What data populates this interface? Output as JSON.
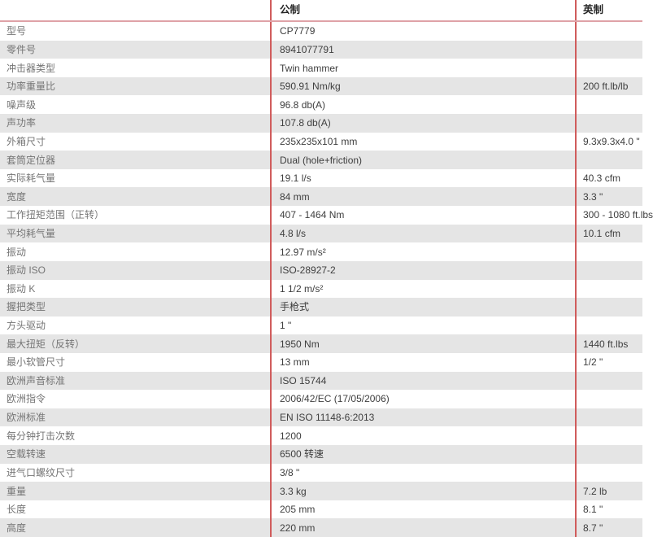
{
  "table": {
    "header": {
      "label": "",
      "metric": "公制",
      "imperial": "英制"
    },
    "rows": [
      {
        "label": "型号",
        "metric": "CP7779",
        "imperial": ""
      },
      {
        "label": "零件号",
        "metric": "8941077791",
        "imperial": ""
      },
      {
        "label": "冲击器类型",
        "metric": "Twin hammer",
        "imperial": ""
      },
      {
        "label": "功率重量比",
        "metric": "590.91 Nm/kg",
        "imperial": "200 ft.lb/lb"
      },
      {
        "label": "噪声级",
        "metric": "96.8 db(A)",
        "imperial": ""
      },
      {
        "label": "声功率",
        "metric": "107.8 db(A)",
        "imperial": ""
      },
      {
        "label": "外箱尺寸",
        "metric": "235x235x101 mm",
        "imperial": "9.3x9.3x4.0 \""
      },
      {
        "label": "套筒定位器",
        "metric": "Dual (hole+friction)",
        "imperial": ""
      },
      {
        "label": "实际耗气量",
        "metric": "19.1 l/s",
        "imperial": "40.3 cfm"
      },
      {
        "label": "宽度",
        "metric": "84 mm",
        "imperial": "3.3 \""
      },
      {
        "label": "工作扭矩范围（正转）",
        "metric": "407 - 1464 Nm",
        "imperial": "300 - 1080 ft.lbs"
      },
      {
        "label": "平均耗气量",
        "metric": "4.8 l/s",
        "imperial": "10.1 cfm"
      },
      {
        "label": "振动",
        "metric": "12.97 m/s²",
        "imperial": ""
      },
      {
        "label": "振动 ISO",
        "metric": "ISO-28927-2",
        "imperial": ""
      },
      {
        "label": "振动 K",
        "metric": "1 1/2 m/s²",
        "imperial": ""
      },
      {
        "label": "握把类型",
        "metric": "手枪式",
        "imperial": ""
      },
      {
        "label": "方头驱动",
        "metric": "1 \"",
        "imperial": ""
      },
      {
        "label": "最大扭矩（反转）",
        "metric": "1950 Nm",
        "imperial": "1440 ft.lbs"
      },
      {
        "label": "最小软管尺寸",
        "metric": "13 mm",
        "imperial": "1/2 \""
      },
      {
        "label": "欧洲声音标准",
        "metric": "ISO 15744",
        "imperial": ""
      },
      {
        "label": "欧洲指令",
        "metric": "2006/42/EC (17/05/2006)",
        "imperial": ""
      },
      {
        "label": "欧洲标准",
        "metric": "EN ISO 11148-6:2013",
        "imperial": ""
      },
      {
        "label": "每分钟打击次数",
        "metric": "1200",
        "imperial": ""
      },
      {
        "label": "空载转速",
        "metric": "6500 转速",
        "imperial": ""
      },
      {
        "label": "进气口螺纹尺寸",
        "metric": "3/8 \"",
        "imperial": ""
      },
      {
        "label": "重量",
        "metric": "3.3 kg",
        "imperial": "7.2 lb"
      },
      {
        "label": "长度",
        "metric": "205 mm",
        "imperial": "8.1 \""
      },
      {
        "label": "高度",
        "metric": "220 mm",
        "imperial": "8.7 \""
      }
    ],
    "colors": {
      "accent_red": "#d05c5c",
      "header_border": "#dfa2a7",
      "row_alt": "#e5e5e5",
      "label_text": "#757575",
      "value_text": "#3e3e3e",
      "header_text": "#262626"
    }
  }
}
